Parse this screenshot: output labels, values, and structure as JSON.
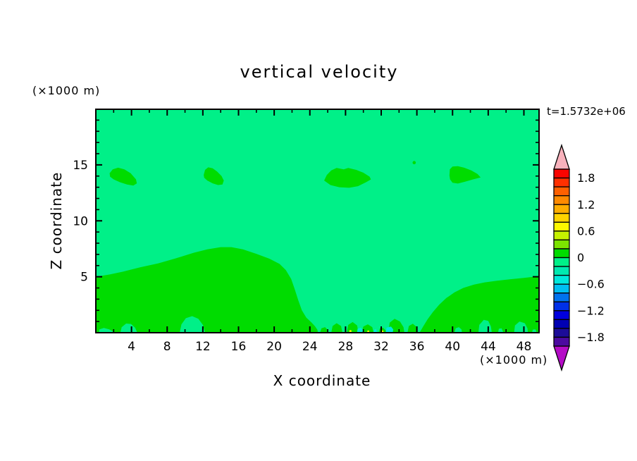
{
  "header": {
    "title": "vertical velocity",
    "time_label": "t=1.5732e+06"
  },
  "axes": {
    "x": {
      "label": "X coordinate",
      "unit_label": "(×1000 m)",
      "min": 0,
      "max": 49.7,
      "major_ticks": [
        4,
        8,
        12,
        16,
        20,
        24,
        28,
        32,
        36,
        40,
        44,
        48
      ],
      "minor_step": 2
    },
    "z": {
      "label": "Z coordinate",
      "unit_label": "(×1000 m)",
      "min": 0,
      "max": 19.97,
      "major_ticks": [
        5,
        10,
        15
      ],
      "minor_step": 1
    }
  },
  "colorbar": {
    "tick_labels": [
      "1.8",
      "1.2",
      "0.6",
      "0",
      "−0.6",
      "−1.2",
      "−1.8"
    ],
    "levels_min": -2.0,
    "levels_max": 2.0,
    "level_step": 0.2,
    "segment_colors_top_to_bottom": [
      "#FA0400",
      "#FF3000",
      "#FF6000",
      "#FF8A00",
      "#FFAE00",
      "#FFD400",
      "#FDF800",
      "#C6F200",
      "#7CE400",
      "#00DC00",
      "#00F088",
      "#00E9B0",
      "#00E8DC",
      "#00BEF2",
      "#0072EE",
      "#0030E8",
      "#0000DE",
      "#0000B2",
      "#1C0C98",
      "#4C0AA0"
    ],
    "over_arrow_color": "#F8B2BC",
    "under_arrow_color": "#B40CC6"
  },
  "chart_data": {
    "type": "heatmap",
    "title": "vertical velocity",
    "xlabel": "X coordinate (×1000 m)",
    "ylabel": "Z coordinate (×1000 m)",
    "xlim": [
      0,
      49.7
    ],
    "ylim": [
      0,
      19.97
    ],
    "time_annotation": "t=1.5732e+06",
    "contour_interval": 0.2,
    "background_level": {
      "range": [
        -0.2,
        0
      ],
      "color": "#00F088"
    },
    "positive_level_color": "#00DC00",
    "regions": [
      {
        "name": "updraft-region-bottom-left",
        "level": [
          0,
          0.2
        ],
        "color": "#00DC00",
        "points": [
          [
            0,
            0
          ],
          [
            0,
            5.0
          ],
          [
            1.5,
            5.2
          ],
          [
            3,
            5.45
          ],
          [
            5,
            5.85
          ],
          [
            7,
            6.2
          ],
          [
            9,
            6.65
          ],
          [
            11,
            7.15
          ],
          [
            12.5,
            7.45
          ],
          [
            14,
            7.65
          ],
          [
            15.2,
            7.65
          ],
          [
            16.5,
            7.45
          ],
          [
            18,
            7.05
          ],
          [
            19.5,
            6.6
          ],
          [
            20.6,
            6.15
          ],
          [
            21.3,
            5.6
          ],
          [
            21.9,
            4.8
          ],
          [
            22.3,
            3.9
          ],
          [
            22.7,
            2.9
          ],
          [
            23.1,
            2.0
          ],
          [
            23.6,
            1.35
          ],
          [
            24.2,
            0.9
          ],
          [
            24.6,
            0.55
          ],
          [
            24.85,
            0.25
          ],
          [
            24.9,
            0
          ]
        ]
      },
      {
        "name": "updraft-region-bottom-right",
        "level": [
          0,
          0.2
        ],
        "color": "#00DC00",
        "points": [
          [
            36.3,
            0
          ],
          [
            36.7,
            0.55
          ],
          [
            37.2,
            1.2
          ],
          [
            37.8,
            1.85
          ],
          [
            38.5,
            2.5
          ],
          [
            39.3,
            3.1
          ],
          [
            40.2,
            3.6
          ],
          [
            41.2,
            4.0
          ],
          [
            42.4,
            4.3
          ],
          [
            43.6,
            4.5
          ],
          [
            45.0,
            4.65
          ],
          [
            46.5,
            4.78
          ],
          [
            48.0,
            4.9
          ],
          [
            49.7,
            5.05
          ],
          [
            49.7,
            0
          ]
        ]
      },
      {
        "name": "downdraft-hole-1",
        "level": [
          -0.2,
          0
        ],
        "color": "#00F088",
        "points": [
          [
            0.35,
            0
          ],
          [
            0.4,
            0.3
          ],
          [
            0.9,
            0.42
          ],
          [
            1.5,
            0.3
          ],
          [
            1.9,
            0.12
          ],
          [
            1.95,
            0
          ]
        ]
      },
      {
        "name": "downdraft-hole-2",
        "level": [
          -0.2,
          0
        ],
        "color": "#00F088",
        "points": [
          [
            2.75,
            0
          ],
          [
            2.9,
            0.5
          ],
          [
            3.4,
            0.82
          ],
          [
            3.95,
            0.78
          ],
          [
            4.4,
            0.45
          ],
          [
            4.65,
            0
          ]
        ]
      },
      {
        "name": "downdraft-hole-3",
        "level": [
          -0.2,
          0
        ],
        "color": "#00F088",
        "points": [
          [
            9.4,
            0
          ],
          [
            9.6,
            0.75
          ],
          [
            10.1,
            1.3
          ],
          [
            10.8,
            1.48
          ],
          [
            11.5,
            1.25
          ],
          [
            12.0,
            0.7
          ],
          [
            12.25,
            0
          ]
        ]
      },
      {
        "name": "downdraft-hole-4",
        "level": [
          -0.2,
          0
        ],
        "color": "#00F088",
        "points": [
          [
            40.2,
            0
          ],
          [
            40.35,
            0.4
          ],
          [
            40.7,
            0.5
          ],
          [
            41.0,
            0.3
          ],
          [
            41.05,
            0
          ]
        ]
      },
      {
        "name": "downdraft-hole-5",
        "level": [
          -0.2,
          0
        ],
        "color": "#00F088",
        "points": [
          [
            42.9,
            0
          ],
          [
            43.0,
            0.7
          ],
          [
            43.5,
            1.15
          ],
          [
            44.0,
            1.05
          ],
          [
            44.3,
            0.55
          ],
          [
            44.4,
            0
          ]
        ]
      },
      {
        "name": "downdraft-hole-6",
        "level": [
          -0.2,
          0
        ],
        "color": "#00F088",
        "points": [
          [
            45.1,
            0
          ],
          [
            45.2,
            0.35
          ],
          [
            45.5,
            0.4
          ],
          [
            45.7,
            0
          ]
        ]
      },
      {
        "name": "downdraft-hole-7",
        "level": [
          -0.2,
          0
        ],
        "color": "#00F088",
        "points": [
          [
            46.9,
            0
          ],
          [
            47.0,
            0.65
          ],
          [
            47.5,
            1.0
          ],
          [
            48.1,
            0.85
          ],
          [
            48.4,
            0.4
          ],
          [
            48.45,
            0
          ]
        ]
      },
      {
        "name": "downdraft-hole-8",
        "level": [
          -0.2,
          0
        ],
        "color": "#00F088",
        "points": [
          [
            48.9,
            0
          ],
          [
            49.0,
            0.28
          ],
          [
            49.3,
            0.3
          ],
          [
            49.45,
            0
          ]
        ]
      },
      {
        "name": "surface-bump-1",
        "level": [
          0,
          0.2
        ],
        "color": "#00DC00",
        "points": [
          [
            25.15,
            0
          ],
          [
            25.3,
            0.4
          ],
          [
            25.7,
            0.5
          ],
          [
            26.0,
            0.25
          ],
          [
            26.05,
            0
          ]
        ]
      },
      {
        "name": "surface-bump-2",
        "level": [
          0,
          0.2
        ],
        "color": "#00DC00",
        "points": [
          [
            26.4,
            0
          ],
          [
            26.55,
            0.6
          ],
          [
            27.0,
            0.85
          ],
          [
            27.5,
            0.6
          ],
          [
            27.65,
            0
          ]
        ]
      },
      {
        "name": "surface-bump-3",
        "level": [
          0,
          0.2
        ],
        "color": "#00DC00",
        "points": [
          [
            28.15,
            0
          ],
          [
            28.3,
            0.7
          ],
          [
            28.8,
            0.95
          ],
          [
            29.3,
            0.65
          ],
          [
            29.45,
            0
          ]
        ]
      },
      {
        "name": "surface-bump-4",
        "level": [
          0,
          0.2
        ],
        "color": "#00DC00",
        "points": [
          [
            29.8,
            0
          ],
          [
            30.0,
            0.55
          ],
          [
            30.5,
            0.75
          ],
          [
            31.0,
            0.5
          ],
          [
            31.15,
            0
          ]
        ]
      },
      {
        "name": "surface-bump-5",
        "level": [
          0,
          0.2
        ],
        "color": "#00DC00",
        "points": [
          [
            31.7,
            0
          ],
          [
            31.85,
            0.4
          ],
          [
            32.2,
            0.45
          ],
          [
            32.5,
            0.2
          ],
          [
            32.55,
            0
          ]
        ]
      },
      {
        "name": "surface-bump-6",
        "level": [
          0,
          0.2
        ],
        "color": "#00DC00",
        "points": [
          [
            32.8,
            0
          ],
          [
            32.95,
            0.9
          ],
          [
            33.5,
            1.25
          ],
          [
            34.1,
            1.0
          ],
          [
            34.5,
            0.5
          ],
          [
            34.6,
            0
          ]
        ]
      },
      {
        "name": "surface-bump-7",
        "level": [
          0,
          0.2
        ],
        "color": "#00DC00",
        "points": [
          [
            34.95,
            0
          ],
          [
            35.1,
            0.6
          ],
          [
            35.55,
            0.8
          ],
          [
            36.0,
            0.5
          ],
          [
            36.1,
            0
          ]
        ]
      },
      {
        "name": "updraft-blob-z14-x3",
        "level": [
          0,
          0.2
        ],
        "color": "#00DC00",
        "points": [
          [
            1.55,
            14.25
          ],
          [
            1.9,
            14.6
          ],
          [
            2.5,
            14.75
          ],
          [
            3.2,
            14.6
          ],
          [
            3.9,
            14.25
          ],
          [
            4.5,
            13.7
          ],
          [
            4.6,
            13.35
          ],
          [
            4.2,
            13.15
          ],
          [
            3.5,
            13.25
          ],
          [
            2.7,
            13.45
          ],
          [
            2.0,
            13.7
          ],
          [
            1.6,
            13.95
          ]
        ]
      },
      {
        "name": "updraft-blob-z14-x13",
        "level": [
          0,
          0.2
        ],
        "color": "#00DC00",
        "points": [
          [
            12.1,
            14.1
          ],
          [
            12.25,
            14.55
          ],
          [
            12.6,
            14.78
          ],
          [
            13.1,
            14.7
          ],
          [
            13.6,
            14.4
          ],
          [
            14.1,
            14.0
          ],
          [
            14.35,
            13.6
          ],
          [
            14.2,
            13.25
          ],
          [
            13.7,
            13.2
          ],
          [
            13.1,
            13.35
          ],
          [
            12.5,
            13.6
          ],
          [
            12.15,
            13.85
          ]
        ]
      },
      {
        "name": "updraft-blob-z14-x28",
        "level": [
          0,
          0.2
        ],
        "color": "#00DC00",
        "points": [
          [
            25.6,
            13.6
          ],
          [
            25.9,
            14.1
          ],
          [
            26.4,
            14.5
          ],
          [
            27.0,
            14.72
          ],
          [
            27.8,
            14.6
          ],
          [
            28.3,
            14.72
          ],
          [
            29.2,
            14.55
          ],
          [
            30.0,
            14.3
          ],
          [
            30.7,
            13.95
          ],
          [
            30.85,
            13.7
          ],
          [
            30.3,
            13.45
          ],
          [
            29.4,
            13.1
          ],
          [
            28.4,
            12.95
          ],
          [
            27.3,
            13.0
          ],
          [
            26.3,
            13.2
          ]
        ]
      },
      {
        "name": "updraft-blob-z14-x41",
        "level": [
          0,
          0.2
        ],
        "color": "#00DC00",
        "points": [
          [
            39.65,
            14.05
          ],
          [
            39.7,
            14.6
          ],
          [
            40.0,
            14.85
          ],
          [
            40.6,
            14.88
          ],
          [
            41.3,
            14.75
          ],
          [
            42.1,
            14.5
          ],
          [
            42.8,
            14.18
          ],
          [
            43.15,
            13.88
          ],
          [
            42.3,
            13.7
          ],
          [
            41.4,
            13.5
          ],
          [
            40.6,
            13.33
          ],
          [
            40.0,
            13.4
          ],
          [
            39.72,
            13.7
          ]
        ]
      },
      {
        "name": "updraft-speck-z15",
        "level": [
          0,
          0.2
        ],
        "color": "#00DC00",
        "circle": [
          35.7,
          15.2,
          0.18
        ]
      },
      {
        "name": "cyan-speck-1",
        "level": [
          -0.6,
          -0.4
        ],
        "color": "#00E8DC",
        "points": [
          [
            29.3,
            0.05
          ],
          [
            29.35,
            0.35
          ],
          [
            29.7,
            0.45
          ],
          [
            29.95,
            0.25
          ],
          [
            29.9,
            0.05
          ]
        ]
      },
      {
        "name": "cyan-speck-2",
        "level": [
          -0.6,
          -0.4
        ],
        "color": "#00E8DC",
        "points": [
          [
            31.15,
            0.05
          ],
          [
            31.2,
            0.28
          ],
          [
            31.45,
            0.3
          ],
          [
            31.5,
            0.05
          ]
        ]
      },
      {
        "name": "cyan-speck-3",
        "level": [
          -0.6,
          -0.4
        ],
        "color": "#00E8DC",
        "points": [
          [
            32.5,
            0.05
          ],
          [
            32.6,
            0.45
          ],
          [
            33.1,
            0.55
          ],
          [
            33.35,
            0.3
          ],
          [
            33.3,
            0.05
          ]
        ]
      },
      {
        "name": "yellow-speck-1",
        "level": [
          0.6,
          0.8
        ],
        "color": "#FCF800",
        "circle": [
          28.55,
          0.14,
          0.13
        ]
      },
      {
        "name": "yellow-speck-2",
        "level": [
          0.6,
          0.8
        ],
        "color": "#FCF800",
        "circle": [
          30.55,
          0.12,
          0.11
        ]
      },
      {
        "name": "yellow-speck-3",
        "level": [
          0.6,
          0.8
        ],
        "color": "#FCF800",
        "circle": [
          32.15,
          0.12,
          0.11
        ]
      }
    ]
  }
}
